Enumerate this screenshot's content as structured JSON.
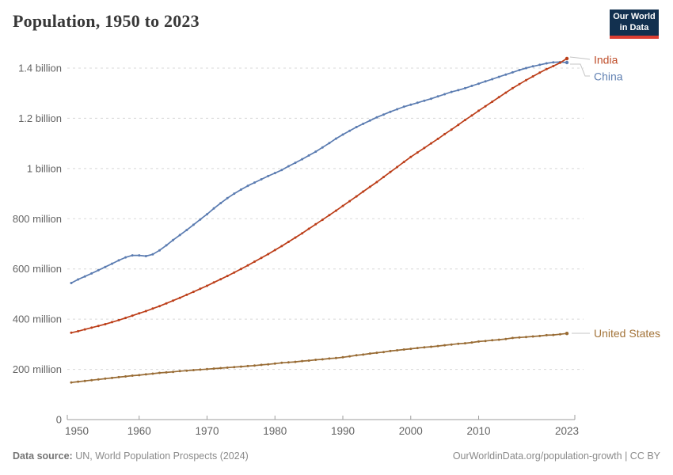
{
  "header": {
    "title": "Population, 1950 to 2023"
  },
  "logo": {
    "line1": "Our World",
    "line2": "in Data",
    "bg_color": "#12304f",
    "accent_color": "#dc3e32"
  },
  "footer": {
    "source_label": "Data source:",
    "source_text": " UN, World Population Prospects (2024)",
    "right_text": "OurWorldinData.org/population-growth | CC BY"
  },
  "chart_data": {
    "type": "line",
    "title": "Population, 1950 to 2023",
    "xlabel": "",
    "ylabel": "",
    "units": "millions of people",
    "x_start": 1950,
    "x_end": 2023,
    "xlim": [
      1950,
      2023
    ],
    "ylim": [
      0,
      1450
    ],
    "grid": "horizontal-dashed",
    "legend_position": "end-of-line-labels",
    "x_ticks": [
      1950,
      1960,
      1970,
      1980,
      1990,
      2000,
      2010,
      2023
    ],
    "y_ticks": [
      {
        "value": 0,
        "label": "0"
      },
      {
        "value": 200,
        "label": "200 million"
      },
      {
        "value": 400,
        "label": "400 million"
      },
      {
        "value": 600,
        "label": "600 million"
      },
      {
        "value": 800,
        "label": "800 million"
      },
      {
        "value": 1000,
        "label": "1 billion"
      },
      {
        "value": 1200,
        "label": "1.2 billion"
      },
      {
        "value": 1400,
        "label": "1.4 billion"
      }
    ],
    "series": [
      {
        "name": "United States",
        "color": "#996c35",
        "label_color": "#a3743a",
        "values": [
          148,
          151,
          154,
          157,
          160,
          163,
          166,
          169,
          172,
          175,
          177,
          180,
          183,
          186,
          188,
          190,
          193,
          195,
          197,
          199,
          201,
          203,
          205,
          207,
          209,
          211,
          213,
          215,
          218,
          220,
          223,
          226,
          228,
          230,
          233,
          235,
          238,
          240,
          243,
          245,
          248,
          252,
          256,
          259,
          263,
          266,
          269,
          273,
          276,
          279,
          282,
          285,
          288,
          290,
          293,
          296,
          299,
          302,
          304,
          307,
          311,
          313,
          316,
          318,
          321,
          325,
          327,
          329,
          331,
          333,
          336,
          337,
          340,
          343
        ]
      },
      {
        "name": "China",
        "color": "#5b7cb1",
        "label_color": "#6181b2",
        "values": [
          544,
          558,
          570,
          582,
          595,
          608,
          621,
          634,
          646,
          654,
          654,
          651,
          658,
          674,
          694,
          715,
          735,
          755,
          776,
          797,
          818,
          841,
          862,
          882,
          900,
          916,
          931,
          944,
          957,
          970,
          982,
          994,
          1009,
          1023,
          1037,
          1052,
          1067,
          1084,
          1101,
          1119,
          1135,
          1150,
          1165,
          1178,
          1191,
          1204,
          1215,
          1226,
          1236,
          1246,
          1254,
          1262,
          1270,
          1278,
          1287,
          1296,
          1305,
          1312,
          1320,
          1329,
          1338,
          1347,
          1356,
          1365,
          1374,
          1383,
          1392,
          1400,
          1407,
          1413,
          1419,
          1423,
          1424,
          1422
        ]
      },
      {
        "name": "India",
        "color": "#bc3e19",
        "label_color": "#bf4e2a",
        "values": [
          346,
          352,
          359,
          366,
          373,
          380,
          388,
          396,
          405,
          414,
          423,
          432,
          442,
          452,
          463,
          474,
          485,
          497,
          509,
          521,
          533,
          546,
          559,
          572,
          586,
          600,
          614,
          629,
          644,
          659,
          675,
          691,
          708,
          725,
          742,
          760,
          778,
          796,
          814,
          832,
          851,
          870,
          889,
          908,
          927,
          946,
          966,
          986,
          1006,
          1026,
          1046,
          1064,
          1082,
          1100,
          1118,
          1137,
          1155,
          1174,
          1193,
          1211,
          1230,
          1248,
          1266,
          1284,
          1302,
          1320,
          1336,
          1352,
          1367,
          1382,
          1396,
          1408,
          1421,
          1438
        ]
      }
    ]
  },
  "style": {
    "grid_color": "#d8d8d8",
    "axis_color": "#9e9e9e",
    "tick_text_color": "#636363",
    "connector_color": "#c4c4c4"
  }
}
